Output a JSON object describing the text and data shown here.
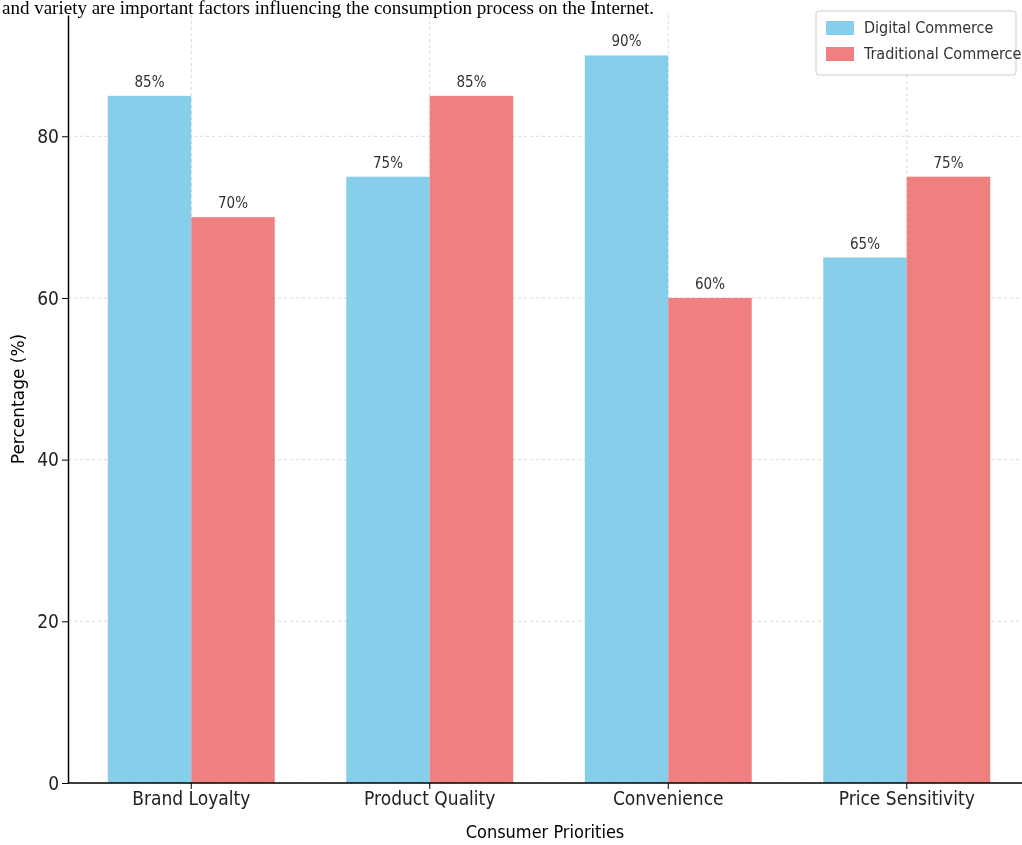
{
  "chart_data": {
    "type": "bar",
    "annotations": [
      "and variety are important factors influencing the consumption process on the Internet."
    ],
    "xlabel": "Consumer Priorities",
    "ylabel": "Percentage (%)",
    "categories": [
      "Brand Loyalty",
      "Product Quality",
      "Convenience",
      "Price Sensitivity"
    ],
    "series": [
      {
        "name": "Digital Commerce",
        "color": "#87ceeb",
        "values": [
          85,
          75,
          90,
          65
        ],
        "value_labels": [
          "85%",
          "75%",
          "90%",
          "65%"
        ]
      },
      {
        "name": "Traditional Commerce",
        "color": "#f08080",
        "values": [
          70,
          85,
          60,
          75
        ],
        "value_labels": [
          "70%",
          "85%",
          "60%",
          "75%"
        ]
      }
    ],
    "ylim": [
      0,
      95
    ],
    "yticks": [
      0,
      20,
      40,
      60,
      80
    ],
    "grid": true,
    "legend": "top right"
  }
}
